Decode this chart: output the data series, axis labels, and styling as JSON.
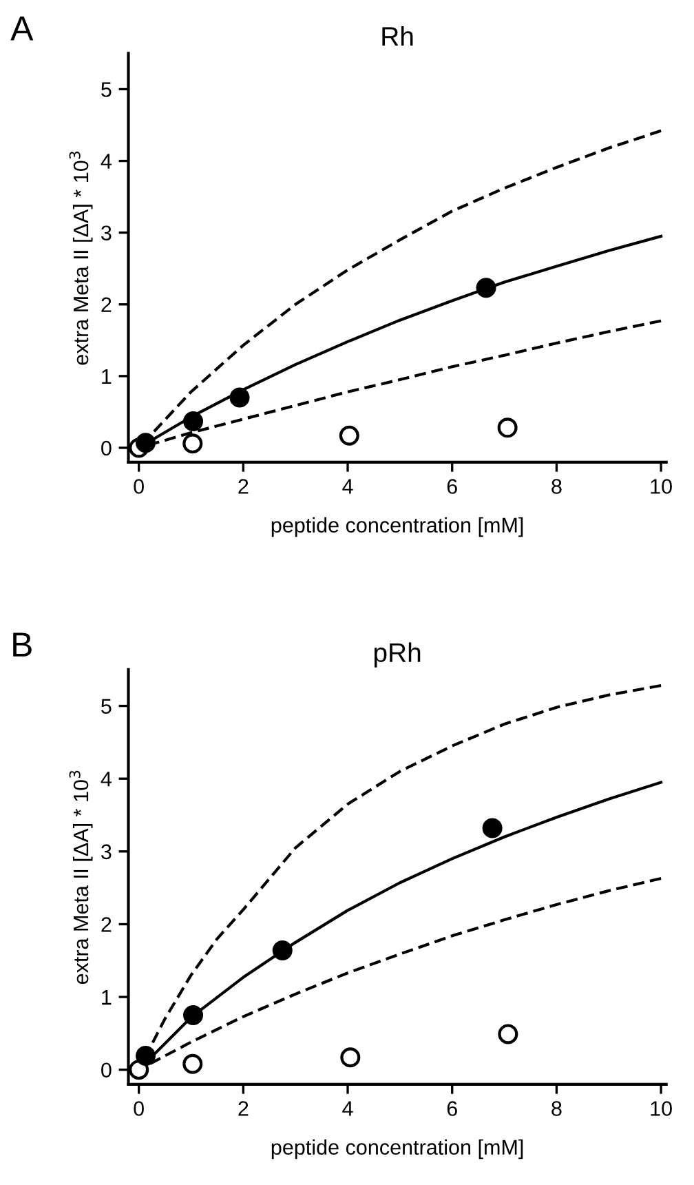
{
  "chart_data": [
    {
      "type": "line",
      "title": "Rh",
      "xlabel": "peptide concentration [mM]",
      "ylabel": "extra Meta II [ΔA] * 10$^{3}$",
      "annotations": [
        "A"
      ],
      "xlim": [
        -0.2,
        10.1
      ],
      "ylim": [
        -0.2,
        5.5
      ],
      "xticks": [
        0,
        2,
        4,
        6,
        8,
        10
      ],
      "yticks": [
        0,
        1,
        2,
        3,
        4,
        5
      ],
      "grid": false,
      "legend": false,
      "series": [
        {
          "line_style": "dashed",
          "marker": "none",
          "color": "#000000",
          "x": [
            0,
            1,
            2,
            3,
            4,
            5,
            6,
            7,
            8,
            9,
            10
          ],
          "values": [
            0,
            0.78,
            1.43,
            2.0,
            2.48,
            2.9,
            3.3,
            3.62,
            3.91,
            4.18,
            4.42
          ]
        },
        {
          "line_style": "solid",
          "marker": "none",
          "color": "#000000",
          "x": [
            0,
            1,
            2,
            3,
            4,
            5,
            6,
            7,
            8,
            9,
            10
          ],
          "values": [
            0,
            0.43,
            0.81,
            1.16,
            1.48,
            1.78,
            2.05,
            2.31,
            2.53,
            2.75,
            2.95
          ]
        },
        {
          "line_style": "dashed",
          "marker": "none",
          "color": "#000000",
          "x": [
            0,
            1,
            2,
            3,
            4,
            5,
            6,
            7,
            8,
            9,
            10
          ],
          "values": [
            0,
            0.21,
            0.4,
            0.59,
            0.78,
            0.95,
            1.13,
            1.29,
            1.46,
            1.62,
            1.77
          ]
        },
        {
          "type": "scatter",
          "marker": "circle",
          "color": "#ffffff",
          "x": [
            0,
            1.03,
            4.03,
            7.06
          ],
          "values": [
            0,
            0.06,
            0.17,
            0.28
          ]
        },
        {
          "type": "scatter",
          "marker": "circle",
          "color": "#000000",
          "x": [
            0.13,
            1.04,
            1.93,
            6.65
          ],
          "values": [
            0.07,
            0.37,
            0.7,
            2.23
          ]
        }
      ]
    },
    {
      "type": "line",
      "title": "pRh",
      "xlabel": "peptide concentration [mM]",
      "ylabel": "extra Meta II [ΔA] * 10$^{3}$",
      "annotations": [
        "B"
      ],
      "xlim": [
        -0.2,
        10.1
      ],
      "ylim": [
        -0.2,
        5.5
      ],
      "xticks": [
        0,
        2,
        4,
        6,
        8,
        10
      ],
      "yticks": [
        0,
        1,
        2,
        3,
        4,
        5
      ],
      "grid": false,
      "legend": false,
      "series": [
        {
          "line_style": "dashed",
          "marker": "none",
          "color": "#000000",
          "x": [
            0,
            0.5,
            1,
            1.5,
            2,
            3,
            4,
            5,
            6,
            7,
            8,
            9,
            10
          ],
          "values": [
            0,
            0.7,
            1.3,
            1.8,
            2.2,
            3.05,
            3.65,
            4.1,
            4.45,
            4.75,
            4.98,
            5.15,
            5.28
          ]
        },
        {
          "line_style": "solid",
          "marker": "none",
          "color": "#000000",
          "x": [
            0,
            1,
            2,
            3,
            4,
            5,
            6,
            7,
            8,
            9,
            10
          ],
          "values": [
            0,
            0.72,
            1.27,
            1.75,
            2.19,
            2.57,
            2.9,
            3.2,
            3.47,
            3.72,
            3.95
          ]
        },
        {
          "line_style": "dashed",
          "marker": "none",
          "color": "#000000",
          "x": [
            0,
            1,
            2,
            3,
            4,
            5,
            6,
            7,
            8,
            9,
            10
          ],
          "values": [
            0,
            0.38,
            0.73,
            1.04,
            1.33,
            1.59,
            1.84,
            2.06,
            2.27,
            2.46,
            2.63
          ]
        },
        {
          "type": "scatter",
          "marker": "circle",
          "color": "#ffffff",
          "x": [
            0,
            1.03,
            4.05,
            7.07
          ],
          "values": [
            0,
            0.08,
            0.17,
            0.49
          ]
        },
        {
          "type": "scatter",
          "marker": "circle",
          "color": "#000000",
          "x": [
            0.13,
            1.04,
            2.75,
            6.77
          ],
          "values": [
            0.19,
            0.75,
            1.64,
            3.32
          ]
        }
      ]
    }
  ]
}
